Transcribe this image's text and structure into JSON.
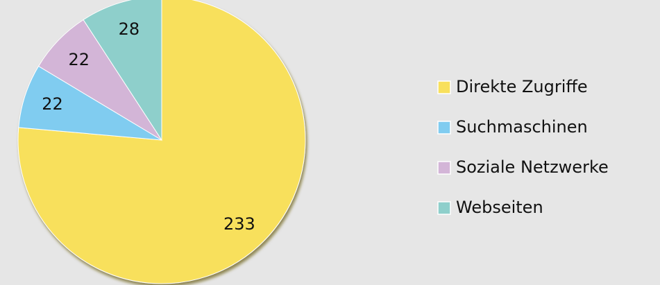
{
  "chart_data": {
    "type": "pie",
    "categories": [
      "Direkte Zugriffe",
      "Suchmaschinen",
      "Soziale Netzwerke",
      "Webseiten"
    ],
    "values": [
      233,
      22,
      22,
      28
    ],
    "colors": [
      "#f8e05c",
      "#80ccf0",
      "#d3b5d7",
      "#8ecfcb"
    ],
    "legend": "right"
  }
}
